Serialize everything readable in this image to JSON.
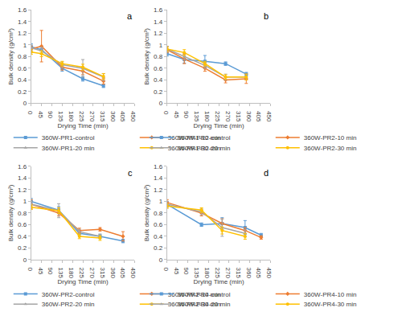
{
  "chart_data": [
    {
      "type": "line",
      "label": "a",
      "x_label": "Drying Time (min)",
      "y_label": "Bulk density (g/cm³)",
      "xlim": [
        0,
        450
      ],
      "xticks": [
        0,
        45,
        90,
        135,
        180,
        225,
        270,
        315,
        360,
        405,
        450
      ],
      "ylim": [
        0,
        1.6
      ],
      "yticks": [
        0,
        0.2,
        0.4,
        0.6,
        0.8,
        1,
        1.2,
        1.4,
        1.6
      ],
      "grid": false,
      "legend": "bottom",
      "series": [
        {
          "name": "360W-PR1-control",
          "color": "#5b9bd5",
          "marker": "square",
          "x": [
            0,
            45,
            135,
            225,
            315
          ],
          "values": [
            0.97,
            0.92,
            0.6,
            0.42,
            0.3
          ],
          "error": [
            0.05,
            0.06,
            0.05,
            0.04,
            0.03
          ]
        },
        {
          "name": "360W-PR1-10 min",
          "color": "#ed7d31",
          "marker": "diamond",
          "x": [
            0,
            45,
            135,
            225,
            315
          ],
          "values": [
            0.93,
            0.98,
            0.62,
            0.55,
            0.38
          ],
          "error": [
            0.05,
            0.27,
            0.05,
            0.06,
            0.05
          ]
        },
        {
          "name": "360W-PR1-20 min",
          "color": "#a5a5a5",
          "marker": "triangle-up",
          "x": [
            0,
            45,
            135,
            225,
            315
          ],
          "values": [
            0.95,
            0.9,
            0.66,
            0.6,
            0.45
          ],
          "error": [
            0.05,
            0.06,
            0.05,
            0.15,
            0.06
          ]
        },
        {
          "name": "360W-PR1-30 min",
          "color": "#ffc000",
          "marker": "circle",
          "x": [
            0,
            45,
            135,
            225,
            315
          ],
          "values": [
            0.88,
            0.85,
            0.68,
            0.62,
            0.46
          ],
          "error": [
            0.04,
            0.05,
            0.04,
            0.05,
            0.05
          ]
        }
      ]
    },
    {
      "type": "line",
      "label": "b",
      "x_label": "Drying Time (min)",
      "y_label": "Bulk density (g/cm³)",
      "xlim": [
        0,
        450
      ],
      "xticks": [
        0,
        45,
        90,
        135,
        180,
        225,
        270,
        315,
        360,
        405,
        450
      ],
      "ylim": [
        0,
        1.6
      ],
      "yticks": [
        0,
        0.2,
        0.4,
        0.6,
        0.8,
        1,
        1.2,
        1.4,
        1.6
      ],
      "grid": false,
      "legend": "bottom",
      "series": [
        {
          "name": "360W-PR2-control",
          "color": "#5b9bd5",
          "marker": "square",
          "x": [
            0,
            75,
            165,
            255,
            345
          ],
          "values": [
            0.85,
            0.75,
            0.72,
            0.68,
            0.5
          ],
          "error": [
            0.04,
            0.06,
            0.1,
            0.03,
            0.03
          ]
        },
        {
          "name": "360W-PR2-10 min",
          "color": "#ed7d31",
          "marker": "diamond",
          "x": [
            0,
            75,
            165,
            255,
            345
          ],
          "values": [
            0.92,
            0.76,
            0.6,
            0.4,
            0.42
          ],
          "error": [
            0.05,
            0.08,
            0.05,
            0.05,
            0.08
          ]
        },
        {
          "name": "360W-PR2-20 min",
          "color": "#a5a5a5",
          "marker": "triangle-up",
          "x": [
            0,
            75,
            165,
            255,
            345
          ],
          "values": [
            0.93,
            0.8,
            0.65,
            0.45,
            0.45
          ],
          "error": [
            0.05,
            0.05,
            0.05,
            0.05,
            0.05
          ]
        },
        {
          "name": "360W-PR2-30 min",
          "color": "#ffc000",
          "marker": "circle",
          "x": [
            0,
            75,
            165,
            255,
            345
          ],
          "values": [
            0.93,
            0.87,
            0.68,
            0.45,
            0.45
          ],
          "error": [
            0.04,
            0.05,
            0.04,
            0.04,
            0.05
          ]
        }
      ]
    },
    {
      "type": "line",
      "label": "c",
      "x_label": "Drying Time (min)",
      "y_label": "Bulk density (g/cm³)",
      "xlim": [
        0,
        450
      ],
      "xticks": [
        0,
        45,
        90,
        135,
        180,
        225,
        270,
        315,
        360,
        405,
        450
      ],
      "ylim": [
        0,
        1.6
      ],
      "yticks": [
        0,
        0.2,
        0.4,
        0.6,
        0.8,
        1,
        1.2,
        1.4,
        1.6
      ],
      "grid": false,
      "legend": "bottom",
      "series": [
        {
          "name": "360W-PR2-control",
          "color": "#5b9bd5",
          "marker": "square",
          "x": [
            0,
            120,
            210,
            300,
            400
          ],
          "values": [
            1.0,
            0.85,
            0.45,
            0.4,
            0.32
          ],
          "error": [
            0.05,
            0.06,
            0.04,
            0.03,
            0.03
          ]
        },
        {
          "name": "360W-PR2-10 min",
          "color": "#ed7d31",
          "marker": "diamond",
          "x": [
            0,
            120,
            210,
            300,
            400
          ],
          "values": [
            0.95,
            0.8,
            0.5,
            0.52,
            0.4
          ],
          "error": [
            0.08,
            0.05,
            0.04,
            0.03,
            0.08
          ]
        },
        {
          "name": "360W-PR2-20 min",
          "color": "#a5a5a5",
          "marker": "triangle-up",
          "x": [
            0,
            120,
            210,
            300
          ],
          "values": [
            0.95,
            0.84,
            0.48,
            0.4
          ],
          "error": [
            0.05,
            0.12,
            0.04,
            0.04
          ]
        },
        {
          "name": "360W-PR2-30 min",
          "color": "#ffc000",
          "marker": "circle",
          "x": [
            0,
            120,
            210,
            300
          ],
          "values": [
            0.9,
            0.84,
            0.4,
            0.37
          ],
          "error": [
            0.04,
            0.05,
            0.04,
            0.04
          ]
        }
      ]
    },
    {
      "type": "line",
      "label": "d",
      "x_label": "Drying Time (min)",
      "y_label": "Bulk density (g/cm³)",
      "xlim": [
        0,
        450
      ],
      "xticks": [
        0,
        45,
        90,
        135,
        180,
        225,
        270,
        315,
        360,
        405,
        450
      ],
      "ylim": [
        0,
        1.6
      ],
      "yticks": [
        0,
        0.2,
        0.4,
        0.6,
        0.8,
        1,
        1.2,
        1.4,
        1.6
      ],
      "grid": false,
      "legend": "bottom",
      "series": [
        {
          "name": "360W-PR4-control",
          "color": "#5b9bd5",
          "marker": "square",
          "x": [
            0,
            150,
            240,
            340,
            410
          ],
          "values": [
            0.95,
            0.6,
            0.62,
            0.55,
            0.42
          ],
          "error": [
            0.05,
            0.03,
            0.1,
            0.12,
            0.03
          ]
        },
        {
          "name": "360W-PR4-10 min",
          "color": "#ed7d31",
          "marker": "diamond",
          "x": [
            0,
            150,
            240,
            340,
            410
          ],
          "values": [
            0.98,
            0.8,
            0.62,
            0.5,
            0.38
          ],
          "error": [
            0.05,
            0.05,
            0.08,
            0.05,
            0.03
          ]
        },
        {
          "name": "360W-PR4-20 min",
          "color": "#a5a5a5",
          "marker": "triangle-up",
          "x": [
            0,
            150,
            240,
            340
          ],
          "values": [
            0.95,
            0.82,
            0.55,
            0.45
          ],
          "error": [
            0.05,
            0.05,
            0.15,
            0.06
          ]
        },
        {
          "name": "360W-PR4-30 min",
          "color": "#ffc000",
          "marker": "circle",
          "x": [
            0,
            150,
            240,
            340
          ],
          "values": [
            0.92,
            0.85,
            0.5,
            0.4
          ],
          "error": [
            0.04,
            0.04,
            0.06,
            0.05
          ]
        }
      ]
    }
  ]
}
